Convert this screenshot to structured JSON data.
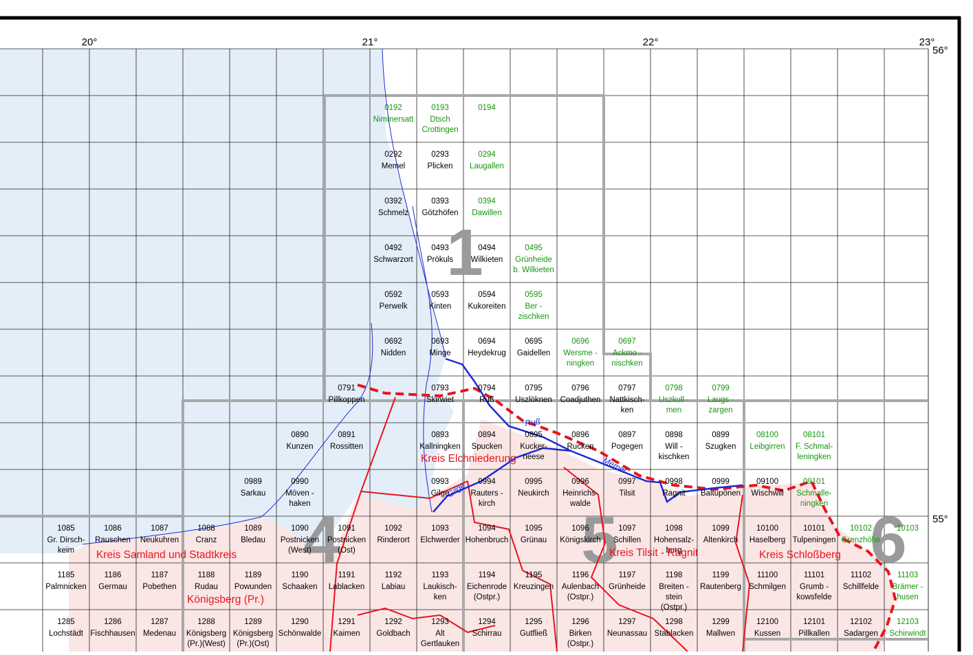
{
  "degrees": [
    "20°",
    "21°",
    "22°",
    "23°",
    "56°",
    "55°"
  ],
  "sections": [
    "1",
    "4",
    "5",
    "6"
  ],
  "regions": [
    "Kreis Elchniederung",
    "Kreis Samland und Stadtkreis",
    "Königsberg (Pr.)",
    "Kreis Tilsit - Ragnit",
    "Kreis Schloßberg"
  ],
  "rivers": [
    "Ruß",
    "Memel",
    "Gilge"
  ],
  "green": "#17950f",
  "cells": [
    {
      "code": "0192",
      "lines": [
        "Nimmersatt"
      ],
      "g": true
    },
    {
      "code": "0193",
      "lines": [
        "Dtsch",
        "Crottingen"
      ],
      "g": true
    },
    {
      "code": "0194",
      "lines": [],
      "g": true
    },
    {
      "code": "0292",
      "lines": [
        "Memel"
      ]
    },
    {
      "code": "0293",
      "lines": [
        "Plicken"
      ]
    },
    {
      "code": "0294",
      "lines": [
        "Laugallen"
      ],
      "g": true
    },
    {
      "code": "0392",
      "lines": [
        "Schmelz"
      ]
    },
    {
      "code": "0393",
      "lines": [
        "Götzhöfen"
      ]
    },
    {
      "code": "0394",
      "lines": [
        "Dawillen"
      ],
      "g": true
    },
    {
      "code": "0492",
      "lines": [
        "Schwarzort"
      ]
    },
    {
      "code": "0493",
      "lines": [
        "Prökuls"
      ]
    },
    {
      "code": "0494",
      "lines": [
        "Wilkieten"
      ]
    },
    {
      "code": "0495",
      "lines": [
        "Grünheide",
        "b. Wilkieten"
      ],
      "g": true
    },
    {
      "code": "0592",
      "lines": [
        "Perwelk"
      ]
    },
    {
      "code": "0593",
      "lines": [
        "Kinten"
      ]
    },
    {
      "code": "0594",
      "lines": [
        "Kukoreiten"
      ]
    },
    {
      "code": "0595",
      "lines": [
        "Ber -",
        "zischken"
      ],
      "g": true
    },
    {
      "code": "0692",
      "lines": [
        "Nidden"
      ]
    },
    {
      "code": "0693",
      "lines": [
        "Minge"
      ]
    },
    {
      "code": "0694",
      "lines": [
        "Heydekrug"
      ]
    },
    {
      "code": "0695",
      "lines": [
        "Gaidellen"
      ]
    },
    {
      "code": "0696",
      "lines": [
        "Wersme -",
        "ningken"
      ],
      "g": true
    },
    {
      "code": "0697",
      "lines": [
        "Ackmo -",
        "nischken"
      ],
      "g": true
    },
    {
      "code": "0791",
      "lines": [
        "Pillkoppen"
      ]
    },
    {
      "code": "0793",
      "lines": [
        "Skirwiet"
      ]
    },
    {
      "code": "0794",
      "lines": [
        "Ruß"
      ]
    },
    {
      "code": "0795",
      "lines": [
        "Uszlöknen"
      ]
    },
    {
      "code": "0796",
      "lines": [
        "Coadjuthen"
      ]
    },
    {
      "code": "0797",
      "lines": [
        "Nattkisch-",
        "ken"
      ]
    },
    {
      "code": "0798",
      "lines": [
        "Uszkull -",
        "men"
      ],
      "g": true
    },
    {
      "code": "0799",
      "lines": [
        "Laugs -",
        "zargen"
      ],
      "g": true
    },
    {
      "code": "0890",
      "lines": [
        "Kunzen"
      ]
    },
    {
      "code": "0891",
      "lines": [
        "Rossitten"
      ]
    },
    {
      "code": "0893",
      "lines": [
        "Kallningken"
      ]
    },
    {
      "code": "0894",
      "lines": [
        "Spucken"
      ]
    },
    {
      "code": "0895",
      "lines": [
        "Kucker-",
        "neese"
      ]
    },
    {
      "code": "0896",
      "lines": [
        "Rucken"
      ]
    },
    {
      "code": "0897",
      "lines": [
        "Pogegen"
      ]
    },
    {
      "code": "0898",
      "lines": [
        "Will -",
        "kischken"
      ]
    },
    {
      "code": "0899",
      "lines": [
        "Szugken"
      ]
    },
    {
      "code": "08100",
      "lines": [
        "Leibgirren"
      ],
      "g": true
    },
    {
      "code": "08101",
      "lines": [
        "F. Schmal-",
        "leningken"
      ],
      "g": true
    },
    {
      "code": "0989",
      "lines": [
        "Sarkau"
      ]
    },
    {
      "code": "0990",
      "lines": [
        "Möven -",
        "haken"
      ]
    },
    {
      "code": "0993",
      "lines": [
        "Gilge"
      ]
    },
    {
      "code": "0994",
      "lines": [
        "Rauters -",
        "kirch"
      ]
    },
    {
      "code": "0995",
      "lines": [
        "Neukirch"
      ]
    },
    {
      "code": "0996",
      "lines": [
        "Heinrichs-",
        "walde"
      ]
    },
    {
      "code": "0997",
      "lines": [
        "Tilsit"
      ]
    },
    {
      "code": "0998",
      "lines": [
        "Ragnit"
      ]
    },
    {
      "code": "0999",
      "lines": [
        "Baltupönen"
      ]
    },
    {
      "code": "09100",
      "lines": [
        "Wischwill"
      ]
    },
    {
      "code": "09101",
      "lines": [
        "Schmalle-",
        "ningken"
      ],
      "g": true
    },
    {
      "code": "1085",
      "lines": [
        "Gr. Dirsch-",
        "keim"
      ]
    },
    {
      "code": "1086",
      "lines": [
        "Rauschen"
      ]
    },
    {
      "code": "1087",
      "lines": [
        "Neukuhren"
      ]
    },
    {
      "code": "1088",
      "lines": [
        "Cranz"
      ]
    },
    {
      "code": "1089",
      "lines": [
        "Bledau"
      ]
    },
    {
      "code": "1090",
      "lines": [
        "Postnicken",
        "(West)"
      ]
    },
    {
      "code": "1091",
      "lines": [
        "Postnicken",
        "(Ost)"
      ]
    },
    {
      "code": "1092",
      "lines": [
        "Rinderort"
      ]
    },
    {
      "code": "1093",
      "lines": [
        "Elchwerder"
      ]
    },
    {
      "code": "1094",
      "lines": [
        "Hohenbruch"
      ]
    },
    {
      "code": "1095",
      "lines": [
        "Grünau"
      ]
    },
    {
      "code": "1096",
      "lines": [
        "Königskirch"
      ]
    },
    {
      "code": "1097",
      "lines": [
        "Schillen"
      ]
    },
    {
      "code": "1098",
      "lines": [
        "Hohensalz-",
        "burg"
      ]
    },
    {
      "code": "1099",
      "lines": [
        "Altenkirch"
      ]
    },
    {
      "code": "10100",
      "lines": [
        "Haselberg"
      ]
    },
    {
      "code": "10101",
      "lines": [
        "Tulpeningen"
      ]
    },
    {
      "code": "10102",
      "lines": [
        "Grenzhöhe"
      ],
      "g": true
    },
    {
      "code": "10103",
      "lines": [],
      "g": true
    },
    {
      "code": "1185",
      "lines": [
        "Palmnicken"
      ]
    },
    {
      "code": "1186",
      "lines": [
        "Germau"
      ]
    },
    {
      "code": "1187",
      "lines": [
        "Pobethen"
      ]
    },
    {
      "code": "1188",
      "lines": [
        "Rudau"
      ]
    },
    {
      "code": "1189",
      "lines": [
        "Powunden"
      ]
    },
    {
      "code": "1190",
      "lines": [
        "Schaaken"
      ]
    },
    {
      "code": "1191",
      "lines": [
        "Lablacken"
      ]
    },
    {
      "code": "1192",
      "lines": [
        "Labiau"
      ]
    },
    {
      "code": "1193",
      "lines": [
        "Laukisch-",
        "ken"
      ]
    },
    {
      "code": "1194",
      "lines": [
        "Eichenrode",
        "(Ostpr.)"
      ]
    },
    {
      "code": "1195",
      "lines": [
        "Kreuzingen"
      ]
    },
    {
      "code": "1196",
      "lines": [
        "Aulenbach",
        "(Ostpr.)"
      ]
    },
    {
      "code": "1197",
      "lines": [
        "Grünheide"
      ]
    },
    {
      "code": "1198",
      "lines": [
        "Breiten -",
        "stein",
        "(Ostpr.)"
      ]
    },
    {
      "code": "1199",
      "lines": [
        "Rautenberg"
      ]
    },
    {
      "code": "11100",
      "lines": [
        "Schmilgen"
      ]
    },
    {
      "code": "11101",
      "lines": [
        "Grumb -",
        "kowsfelde"
      ]
    },
    {
      "code": "11102",
      "lines": [
        "Schillfelde"
      ]
    },
    {
      "code": "11103",
      "lines": [
        "Brämer -",
        "husen"
      ],
      "g": true
    },
    {
      "code": "1285",
      "lines": [
        "Lochstädt"
      ]
    },
    {
      "code": "1286",
      "lines": [
        "Fischhausen"
      ]
    },
    {
      "code": "1287",
      "lines": [
        "Medenau"
      ]
    },
    {
      "code": "1288",
      "lines": [
        "Königsberg",
        "(Pr.)(West)"
      ]
    },
    {
      "code": "1289",
      "lines": [
        "Königsberg",
        "(Pr.)(Ost)"
      ]
    },
    {
      "code": "1290",
      "lines": [
        "Schönwalde"
      ]
    },
    {
      "code": "1291",
      "lines": [
        "Kaimen"
      ]
    },
    {
      "code": "1292",
      "lines": [
        "Goldbach"
      ]
    },
    {
      "code": "1293",
      "lines": [
        "Alt",
        "Gertlauken"
      ]
    },
    {
      "code": "1294",
      "lines": [
        "Schirrau"
      ]
    },
    {
      "code": "1295",
      "lines": [
        "Gutfließ"
      ]
    },
    {
      "code": "1296",
      "lines": [
        "Birken",
        "(Ostpr.)"
      ]
    },
    {
      "code": "1297",
      "lines": [
        "Neunassau"
      ]
    },
    {
      "code": "1298",
      "lines": [
        "Stablacken"
      ]
    },
    {
      "code": "1299",
      "lines": [
        "Mallwen"
      ]
    },
    {
      "code": "12100",
      "lines": [
        "Kussen"
      ]
    },
    {
      "code": "12101",
      "lines": [
        "Pillkallen"
      ]
    },
    {
      "code": "12102",
      "lines": [
        "Sadargen"
      ]
    },
    {
      "code": "12103",
      "lines": [
        "Schirwindt"
      ],
      "g": true
    }
  ]
}
